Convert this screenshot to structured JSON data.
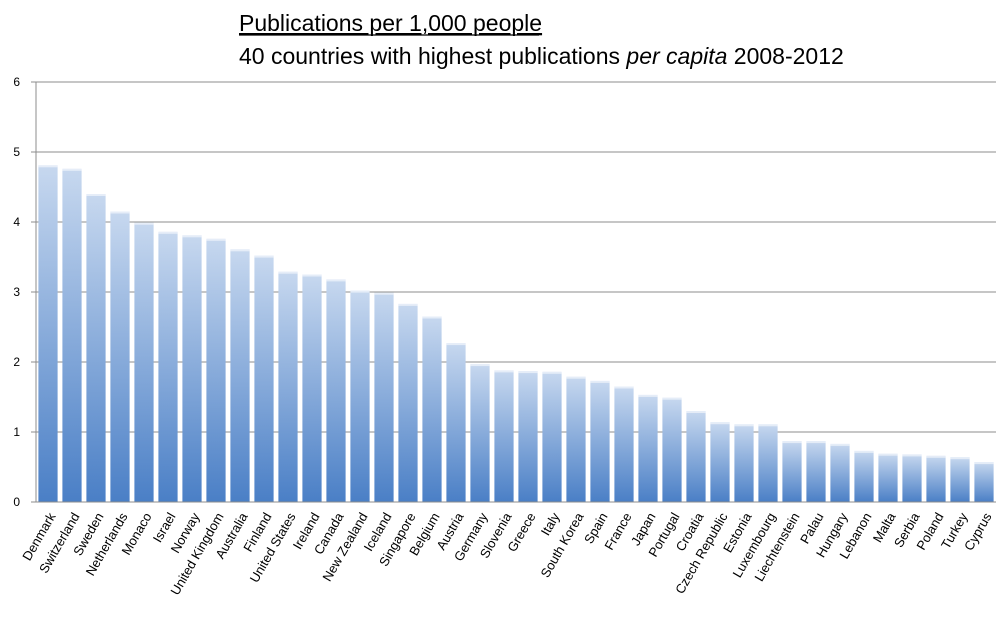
{
  "chart_data": {
    "type": "bar",
    "title": "Publications per 1,000 people",
    "subtitle_prefix": "40 countries with highest publications ",
    "subtitle_italic": "per capita",
    "subtitle_suffix": " 2008-2012",
    "xlabel": "",
    "ylabel": "",
    "ylim": [
      0,
      6
    ],
    "yticks": [
      0,
      1,
      2,
      3,
      4,
      5,
      6
    ],
    "grid": true,
    "colors": {
      "bar_top": "#c7d8ef",
      "bar_bottom": "#4a7fc6",
      "grid": "#8c8c8c",
      "axis": "#8c8c8c"
    },
    "categories": [
      "Denmark",
      "Switzerland",
      "Sweden",
      "Netherlands",
      "Monaco",
      "Israel",
      "Norway",
      "United Kingdom",
      "Australia",
      "Finland",
      "United States",
      "Ireland",
      "Canada",
      "New Zealand",
      "Iceland",
      "Singapore",
      "Belgium",
      "Austria",
      "Germany",
      "Slovenia",
      "Greece",
      "Italy",
      "South Korea",
      "Spain",
      "France",
      "Japan",
      "Portugal",
      "Croatia",
      "Czech Republic",
      "Estonia",
      "Luxembourg",
      "Liechtenstein",
      "Palau",
      "Hungary",
      "Lebanon",
      "Malta",
      "Serbia",
      "Poland",
      "Turkey",
      "Cyprus"
    ],
    "values": [
      4.81,
      4.76,
      4.4,
      4.15,
      3.99,
      3.86,
      3.81,
      3.76,
      3.61,
      3.52,
      3.29,
      3.25,
      3.18,
      3.02,
      2.99,
      2.83,
      2.65,
      2.27,
      1.97,
      1.88,
      1.87,
      1.86,
      1.79,
      1.73,
      1.65,
      1.53,
      1.49,
      1.3,
      1.14,
      1.11,
      1.11,
      0.87,
      0.87,
      0.83,
      0.73,
      0.69,
      0.68,
      0.66,
      0.64,
      0.57
    ]
  }
}
